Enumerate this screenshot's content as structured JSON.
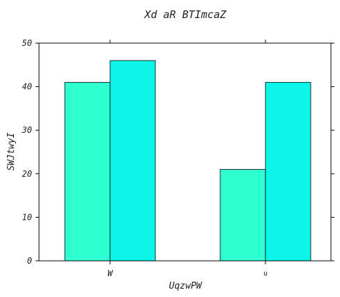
{
  "chart_data": {
    "type": "bar",
    "title": "Xd aR BTImcaZ",
    "xlabel": "UqzwPW",
    "ylabel": "SWJtwyI",
    "categories": [
      "W",
      "u"
    ],
    "series": [
      {
        "values": [
          41,
          21
        ],
        "color": "#2effd0"
      },
      {
        "values": [
          46,
          41
        ],
        "color": "#0af5e8"
      }
    ],
    "ylim": [
      0,
      50
    ],
    "yticks": [
      0,
      10,
      20,
      30,
      40,
      50
    ],
    "grid": false,
    "legend": "none"
  }
}
